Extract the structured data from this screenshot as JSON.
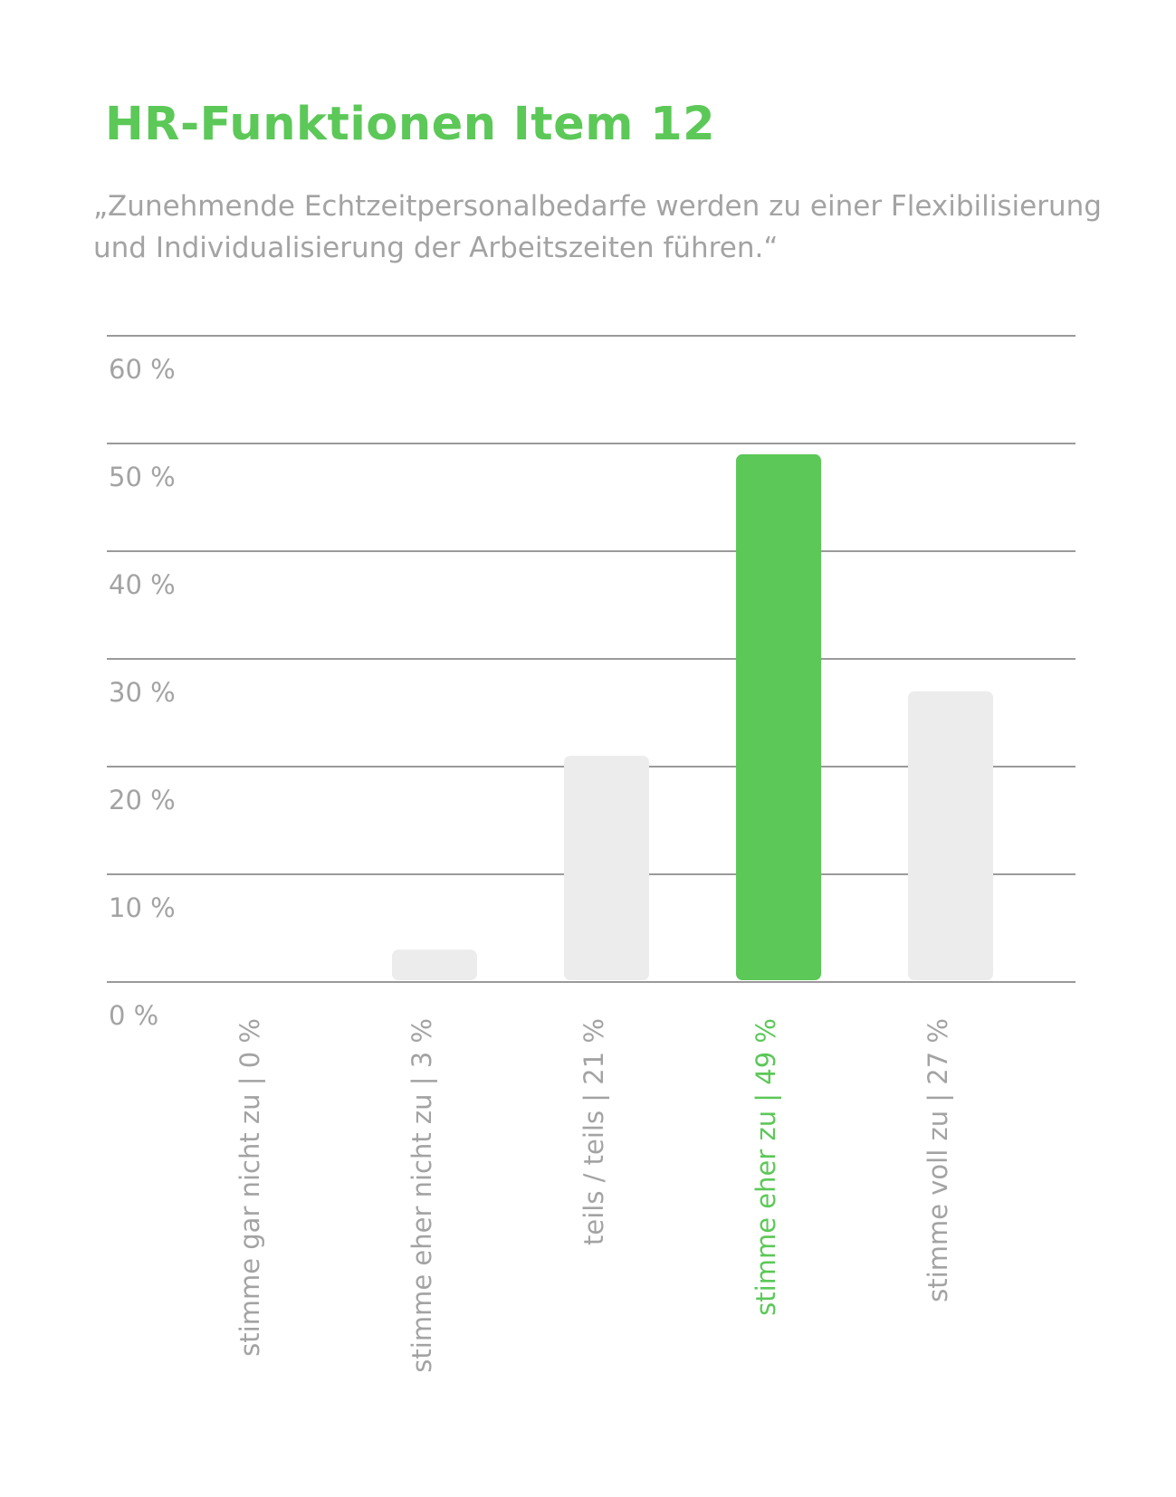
{
  "title": "HR-Funktionen Item 12",
  "subtitle": "„Zunehmende Echtzeitpersonalbedarfe werden zu einer Flexibilisierung und Individualisierung der Arbeitszeiten führen.“",
  "colors": {
    "accent": "#5cc858",
    "bar": "#ececec",
    "grid": "#9a9a9a",
    "text": "#a3a3a3"
  },
  "chart_data": {
    "type": "bar",
    "title": "HR-Funktionen Item 12",
    "xlabel": "",
    "ylabel": "",
    "ylim": [
      0,
      60
    ],
    "grid": true,
    "highlight_index": 3,
    "yticks": [
      {
        "value": 0,
        "label": "0 %"
      },
      {
        "value": 10,
        "label": "10 %"
      },
      {
        "value": 20,
        "label": "20 %"
      },
      {
        "value": 30,
        "label": "30 %"
      },
      {
        "value": 40,
        "label": "40 %"
      },
      {
        "value": 50,
        "label": "50 %"
      },
      {
        "value": 60,
        "label": "60 %"
      }
    ],
    "categories": [
      "stimme gar nicht zu",
      "stimme eher nicht zu",
      "teils / teils",
      "stimme eher zu",
      "stimme voll zu"
    ],
    "values": [
      0,
      3,
      21,
      49,
      27
    ],
    "value_labels": [
      "0 %",
      "3 %",
      "21 %",
      "49 %",
      "27 %"
    ]
  }
}
